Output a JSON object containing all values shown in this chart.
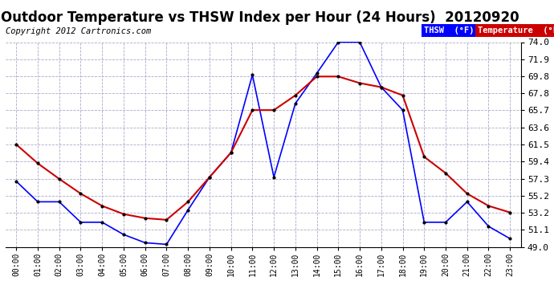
{
  "title": "Outdoor Temperature vs THSW Index per Hour (24 Hours)  20120920",
  "copyright": "Copyright 2012 Cartronics.com",
  "hours": [
    "00:00",
    "01:00",
    "02:00",
    "03:00",
    "04:00",
    "05:00",
    "06:00",
    "07:00",
    "08:00",
    "09:00",
    "10:00",
    "11:00",
    "12:00",
    "13:00",
    "14:00",
    "15:00",
    "16:00",
    "17:00",
    "18:00",
    "19:00",
    "20:00",
    "21:00",
    "22:00",
    "23:00"
  ],
  "thsw": [
    57.0,
    54.5,
    54.5,
    52.0,
    52.0,
    50.5,
    49.5,
    49.3,
    53.5,
    57.5,
    60.5,
    70.0,
    57.5,
    66.5,
    70.2,
    74.0,
    74.0,
    68.5,
    65.7,
    52.0,
    52.0,
    54.5,
    51.5,
    50.0
  ],
  "temperature": [
    61.5,
    59.2,
    57.3,
    55.5,
    54.0,
    53.0,
    52.5,
    52.3,
    54.5,
    57.5,
    60.5,
    65.7,
    65.7,
    67.5,
    69.8,
    69.8,
    69.0,
    68.5,
    67.5,
    60.0,
    58.0,
    55.5,
    54.0,
    53.2
  ],
  "thsw_color": "#0000ff",
  "temp_color": "#cc0000",
  "bg_color": "#ffffff",
  "grid_color": "#aaaacc",
  "ylim": [
    49.0,
    74.0
  ],
  "yticks": [
    49.0,
    51.1,
    53.2,
    55.2,
    57.3,
    59.4,
    61.5,
    63.6,
    65.7,
    67.8,
    69.8,
    71.9,
    74.0
  ],
  "title_fontsize": 12,
  "copyright_fontsize": 7.5,
  "legend_thsw_label": "THSW  (°F)",
  "legend_temp_label": "Temperature  (°F)"
}
